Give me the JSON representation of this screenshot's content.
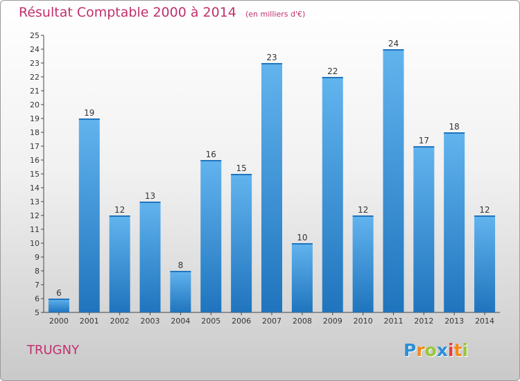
{
  "title": "Résultat Comptable 2000 à 2014",
  "unit": "(en milliers d'€)",
  "commune": "TRUGNY",
  "brand": {
    "letters": [
      "P",
      "r",
      "o",
      "x",
      "i",
      "t",
      "i"
    ],
    "colors": [
      "#2a8fd6",
      "#f08a1c",
      "#9bc53d",
      "#2a8fd6",
      "#e53c3c",
      "#f08a1c",
      "#9bc53d"
    ]
  },
  "colors": {
    "bar": "#3d9be0",
    "bar_light": "#62b4ee",
    "bar_dark": "#1f74bd",
    "title": "#c0306c"
  },
  "chart_data": {
    "type": "bar",
    "categories": [
      "2000",
      "2001",
      "2002",
      "2003",
      "2004",
      "2005",
      "2006",
      "2007",
      "2008",
      "2009",
      "2010",
      "2011",
      "2012",
      "2013",
      "2014"
    ],
    "values": [
      6,
      19,
      12,
      13,
      8,
      16,
      15,
      23,
      10,
      22,
      12,
      24,
      17,
      18,
      12
    ],
    "title": "Résultat Comptable 2000 à 2014",
    "xlabel": "",
    "ylabel": "",
    "ylim": [
      5,
      25
    ],
    "yticks": [
      5,
      6,
      7,
      8,
      9,
      10,
      11,
      12,
      13,
      14,
      15,
      16,
      17,
      18,
      19,
      20,
      21,
      22,
      23,
      24,
      25
    ],
    "grid": false,
    "legend": "none"
  }
}
